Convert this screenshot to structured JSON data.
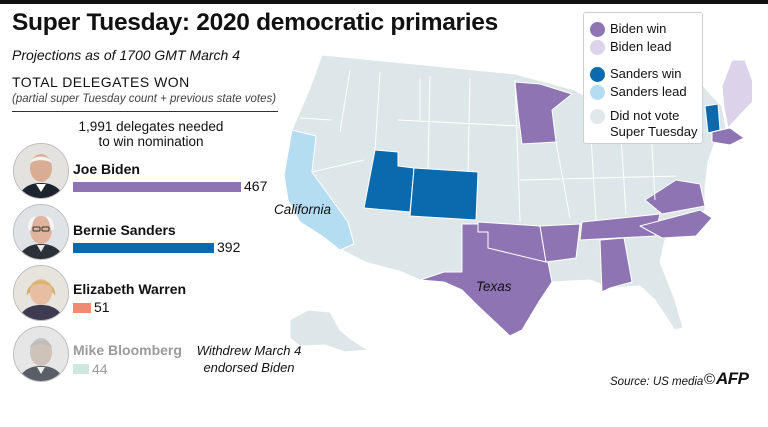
{
  "header": {
    "title": "Super Tuesday: 2020 democratic primaries",
    "subtitle": "Projections as of 1700 GMT March 4"
  },
  "delegates": {
    "heading": "TOTAL DELEGATES WON",
    "note": "(partial super Tuesday count + previous state votes)",
    "needed_line1": "1,991 delegates needed",
    "needed_line2": "to win nomination",
    "withdrew_line1": "Withdrew March 4",
    "withdrew_line2": "endorsed Biden"
  },
  "chart_data": {
    "type": "bar",
    "categories": [
      "Joe Biden",
      "Bernie Sanders",
      "Elizabeth Warren",
      "Mike Bloomberg"
    ],
    "values": [
      467,
      392,
      51,
      44
    ],
    "colors": [
      "#8e74b3",
      "#0a6aad",
      "#ef8b70",
      "#cfe8df"
    ]
  },
  "legend": {
    "items": [
      {
        "label": "Biden win",
        "color": "#8e74b3"
      },
      {
        "label": "Biden lead",
        "color": "#dcd2ea"
      },
      {
        "label": "Sanders win",
        "color": "#0a6aad"
      },
      {
        "label": "Sanders lead",
        "color": "#b5ddf2"
      },
      {
        "label": "Did not vote",
        "label2": "Super Tuesday",
        "color": "#e0e8ea"
      }
    ]
  },
  "map": {
    "labels": {
      "california": "California",
      "texas": "Texas"
    },
    "colors": {
      "base": "#dde6e8",
      "border": "#ffffff",
      "biden_win": "#8e74b3",
      "biden_lead": "#dcd2ea",
      "sanders_win": "#0a6aad",
      "sanders_lead": "#b5ddf2"
    }
  },
  "footer": {
    "source": "Source: US media",
    "copyright": "©",
    "logo": "AFP"
  }
}
